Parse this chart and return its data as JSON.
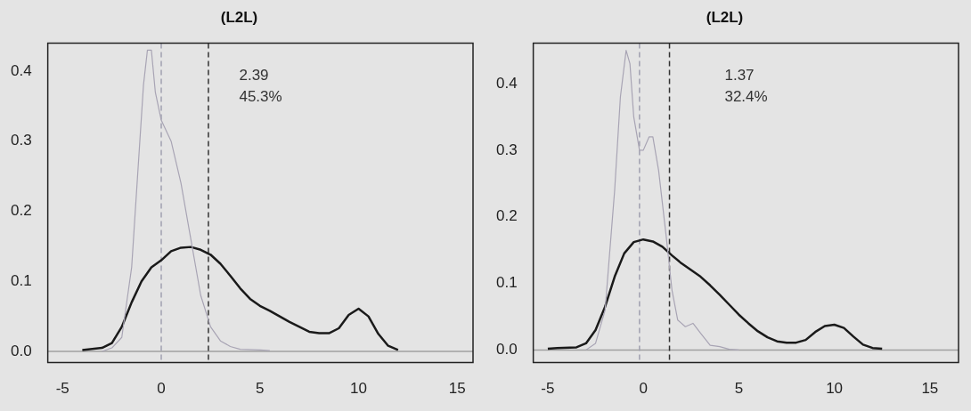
{
  "chart_data": [
    {
      "type": "line",
      "title": "(L2L)",
      "xlim": [
        -5.75,
        15.8
      ],
      "ylim": [
        -0.016,
        0.44
      ],
      "xticks": [
        -5,
        0,
        5,
        10,
        15
      ],
      "yticks": [
        {
          "value": 0,
          "label": "0.0"
        },
        0.1,
        0.2,
        0.3,
        0.4
      ],
      "grid": false,
      "legend": false,
      "marker": "none",
      "series": [
        {
          "color": "#a8a4b4",
          "x": [
            -3,
            -2.5,
            -2,
            -1.5,
            -1.2,
            -0.9,
            -0.7,
            -0.5,
            -0.3,
            0,
            0.5,
            1,
            1.5,
            2,
            2.5,
            3,
            3.5,
            4,
            5,
            5.5
          ],
          "values": [
            0,
            0.005,
            0.02,
            0.12,
            0.25,
            0.38,
            0.43,
            0.43,
            0.37,
            0.33,
            0.3,
            0.24,
            0.16,
            0.08,
            0.035,
            0.015,
            0.007,
            0.003,
            0.002,
            0.001
          ]
        },
        {
          "color": "#1a1a1a",
          "x": [
            -4,
            -3,
            -2.5,
            -2,
            -1.5,
            -1,
            -0.5,
            0,
            0.5,
            1,
            1.5,
            2,
            2.5,
            3,
            3.5,
            4,
            4.5,
            5,
            5.5,
            6,
            6.5,
            7,
            7.5,
            8,
            8.5,
            9,
            9.5,
            10,
            10.5,
            11,
            11.5,
            12
          ],
          "values": [
            0.002,
            0.005,
            0.012,
            0.035,
            0.07,
            0.1,
            0.12,
            0.13,
            0.143,
            0.148,
            0.149,
            0.145,
            0.138,
            0.125,
            0.108,
            0.09,
            0.075,
            0.065,
            0.058,
            0.05,
            0.042,
            0.035,
            0.028,
            0.026,
            0.026,
            0.033,
            0.052,
            0.061,
            0.05,
            0.025,
            0.008,
            0.002
          ]
        }
      ],
      "ref_lines": [
        {
          "axis": "y",
          "value": 0,
          "color": "#a0a0a0",
          "line_style": "solid"
        },
        {
          "axis": "x",
          "value": 0,
          "color": "#a0a0b0",
          "line_style": "dashed"
        },
        {
          "axis": "x",
          "value": 2.39,
          "color": "#333333",
          "line_style": "dashed"
        }
      ],
      "annotations": [
        "2.39",
        "45.3%"
      ]
    },
    {
      "type": "line",
      "title": "(L2L)",
      "xlim": [
        -5.76,
        16.5
      ],
      "ylim": [
        -0.019,
        0.461
      ],
      "xticks": [
        -5,
        0,
        5,
        10,
        15
      ],
      "yticks": [
        {
          "value": 0,
          "label": "0.0"
        },
        0.1,
        0.2,
        0.3,
        0.4
      ],
      "grid": false,
      "legend": false,
      "marker": "none",
      "series": [
        {
          "color": "#a8a4b4",
          "x": [
            -3,
            -2.5,
            -2,
            -1.5,
            -1.2,
            -0.9,
            -0.7,
            -0.5,
            -0.2,
            0,
            0.3,
            0.5,
            0.8,
            1.2,
            1.5,
            1.8,
            2.2,
            2.6,
            3,
            3.5,
            4,
            4.5,
            5
          ],
          "values": [
            0,
            0.01,
            0.06,
            0.24,
            0.38,
            0.45,
            0.43,
            0.35,
            0.3,
            0.3,
            0.32,
            0.32,
            0.27,
            0.17,
            0.09,
            0.045,
            0.035,
            0.04,
            0.025,
            0.007,
            0.005,
            0.001,
            0
          ]
        },
        {
          "color": "#1a1a1a",
          "x": [
            -5,
            -4.5,
            -3.5,
            -3,
            -2.5,
            -2,
            -1.5,
            -1,
            -0.5,
            0,
            0.5,
            1,
            1.5,
            2,
            2.5,
            3,
            3.5,
            4,
            4.5,
            5,
            5.5,
            6,
            6.5,
            7,
            7.5,
            8,
            8.5,
            9,
            9.5,
            10,
            10.5,
            11,
            11.5,
            12,
            12.5
          ],
          "values": [
            0.002,
            0.003,
            0.004,
            0.01,
            0.03,
            0.065,
            0.11,
            0.145,
            0.162,
            0.166,
            0.163,
            0.155,
            0.142,
            0.13,
            0.12,
            0.11,
            0.097,
            0.083,
            0.068,
            0.053,
            0.04,
            0.028,
            0.019,
            0.013,
            0.011,
            0.011,
            0.015,
            0.027,
            0.036,
            0.038,
            0.033,
            0.02,
            0.008,
            0.003,
            0.002
          ]
        }
      ],
      "ref_lines": [
        {
          "axis": "y",
          "value": 0,
          "color": "#a0a0a0",
          "line_style": "solid"
        },
        {
          "axis": "x",
          "value": -0.2,
          "color": "#a0a0b0",
          "line_style": "dashed"
        },
        {
          "axis": "x",
          "value": 1.37,
          "color": "#333333",
          "line_style": "dashed"
        }
      ],
      "annotations": [
        "1.37",
        "32.4%"
      ]
    }
  ]
}
